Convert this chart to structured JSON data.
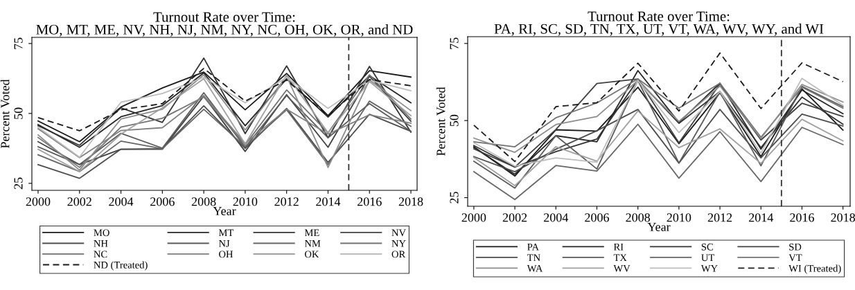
{
  "chart_data": [
    {
      "type": "line",
      "title": "Turnout Rate over Time:\nMO, MT, ME, NV, NH, NJ, NM, NY, NC, OH, OK, OR, and ND",
      "xlabel": "Year",
      "ylabel": "Percent Voted",
      "x": [
        2000,
        2002,
        2004,
        2006,
        2008,
        2010,
        2012,
        2014,
        2016,
        2018
      ],
      "xlim": [
        1999.7,
        2018.3
      ],
      "xticks": [
        2000,
        2002,
        2004,
        2006,
        2008,
        2010,
        2012,
        2014,
        2016,
        2018
      ],
      "ylim": [
        22.5,
        77.2
      ],
      "yticks": [
        25,
        50,
        75
      ],
      "grid": false,
      "legend": "bottom",
      "ref_lines": [
        {
          "axis": "x",
          "value": 2015,
          "color": "#333333",
          "line_style": "dashed"
        }
      ],
      "series": [
        {
          "name": "MO",
          "color": "#1a1a1a",
          "values": [
            47.3,
            39.9,
            52.3,
            59.1,
            64.8,
            51.3,
            64.3,
            49.2,
            65.3,
            63.0
          ]
        },
        {
          "name": "MT",
          "color": "#262626",
          "values": [
            46.0,
            37.9,
            48.8,
            52.8,
            64.5,
            45.6,
            62.4,
            48.7,
            63.5,
            53.8
          ]
        },
        {
          "name": "ME",
          "color": "#333333",
          "values": [
            45.6,
            38.6,
            52.0,
            46.8,
            69.8,
            42.8,
            67.0,
            41.3,
            66.8,
            43.3
          ]
        },
        {
          "name": "NV",
          "color": "#404040",
          "values": [
            39.9,
            31.7,
            37.2,
            37.2,
            56.2,
            36.4,
            56.7,
            37.9,
            63.3,
            47.2
          ]
        },
        {
          "name": "NH",
          "color": "#4d4d4d",
          "values": [
            31.7,
            26.8,
            37.2,
            37.4,
            52.7,
            37.5,
            51.8,
            32.5,
            49.7,
            43.6
          ]
        },
        {
          "name": "NJ",
          "color": "#5a5a5a",
          "values": [
            38.1,
            31.7,
            42.9,
            37.6,
            57.4,
            37.9,
            56.4,
            41.3,
            53.5,
            43.6
          ]
        },
        {
          "name": "NM",
          "color": "#666666",
          "values": [
            35.2,
            29.2,
            40.1,
            37.4,
            51.5,
            38.1,
            51.3,
            31.7,
            54.4,
            45.4
          ]
        },
        {
          "name": "NY",
          "color": "#737373",
          "values": [
            41.4,
            30.7,
            45.1,
            48.3,
            55.9,
            38.8,
            58.4,
            43.1,
            63.8,
            48.0
          ]
        },
        {
          "name": "NC",
          "color": "#808080",
          "values": [
            44.5,
            34.2,
            43.9,
            44.9,
            56.4,
            39.3,
            51.5,
            42.6,
            49.5,
            46.5
          ]
        },
        {
          "name": "OH",
          "color": "#8c8c8c",
          "values": [
            42.3,
            29.7,
            48.0,
            51.5,
            63.8,
            44.1,
            63.3,
            30.7,
            61.9,
            51.0
          ]
        },
        {
          "name": "OK",
          "color": "#a0a0a0",
          "values": [
            37.2,
            29.2,
            42.6,
            52.0,
            62.4,
            39.1,
            63.8,
            43.1,
            61.4,
            49.2
          ]
        },
        {
          "name": "OR",
          "color": "#bdbdbd",
          "values": [
            45.1,
            34.4,
            54.0,
            57.1,
            62.9,
            53.8,
            62.9,
            51.8,
            61.9,
            58.1
          ]
        },
        {
          "name": "ND (Treated)",
          "color": "#1a1a1a",
          "line_style": "dashed",
          "values": [
            48.5,
            43.8,
            51.3,
            53.5,
            66.1,
            54.4,
            61.9,
            49.2,
            62.1,
            59.9
          ]
        }
      ]
    },
    {
      "type": "line",
      "title": "Turnout Rate over Time:\nPA, RI, SC, SD, TN, TX, UT, VT, WA, WV, WY, and WI",
      "xlabel": "Year",
      "ylabel": "Percent Voted",
      "x": [
        2000,
        2002,
        2004,
        2006,
        2008,
        2010,
        2012,
        2014,
        2016,
        2018
      ],
      "xlim": [
        1999.7,
        2018.35
      ],
      "xticks": [
        2000,
        2002,
        2004,
        2006,
        2008,
        2010,
        2012,
        2014,
        2016,
        2018
      ],
      "ylim": [
        22.2,
        77.2
      ],
      "yticks": [
        25,
        50,
        75
      ],
      "grid": false,
      "legend": "bottom",
      "ref_lines": [
        {
          "axis": "x",
          "value": 2015,
          "color": "#333333",
          "line_style": "dashed"
        }
      ],
      "series": [
        {
          "name": "PA",
          "color": "#1a1a1a",
          "values": [
            41.5,
            32.0,
            47.0,
            46.6,
            60.8,
            42.5,
            59.0,
            38.3,
            60.3,
            46.9
          ]
        },
        {
          "name": "RI",
          "color": "#262626",
          "values": [
            41.3,
            32.6,
            45.1,
            43.1,
            66.2,
            49.4,
            62.1,
            40.7,
            59.9,
            52.2
          ]
        },
        {
          "name": "SC",
          "color": "#333333",
          "values": [
            41.9,
            34.9,
            39.9,
            44.0,
            63.2,
            49.1,
            59.4,
            41.2,
            57.6,
            48.8
          ]
        },
        {
          "name": "SD",
          "color": "#404040",
          "values": [
            40.8,
            34.9,
            47.1,
            62.0,
            63.5,
            42.8,
            61.9,
            43.7,
            55.6,
            51.3
          ]
        },
        {
          "name": "TN",
          "color": "#4d4d4d",
          "values": [
            38.3,
            33.4,
            40.7,
            46.7,
            53.6,
            36.2,
            53.6,
            37.9,
            52.1,
            48.2
          ]
        },
        {
          "name": "TX",
          "color": "#5a5a5a",
          "values": [
            36.8,
            28.1,
            45.1,
            34.3,
            63.0,
            36.2,
            59.3,
            35.3,
            61.1,
            54.5
          ]
        },
        {
          "name": "UT",
          "color": "#666666",
          "values": [
            33.4,
            24.4,
            35.4,
            33.6,
            48.8,
            31.3,
            46.4,
            30.2,
            47.8,
            42.2
          ]
        },
        {
          "name": "VT",
          "color": "#737373",
          "values": [
            43.1,
            41.5,
            50.9,
            55.7,
            63.5,
            54.0,
            62.1,
            44.6,
            60.8,
            54.0
          ]
        },
        {
          "name": "WA",
          "color": "#8c8c8c",
          "values": [
            44.3,
            39.7,
            48.7,
            51.3,
            63.0,
            49.7,
            61.2,
            44.2,
            61.7,
            56.0
          ]
        },
        {
          "name": "WV",
          "color": "#a0a0a0",
          "values": [
            38.0,
            28.9,
            41.5,
            36.8,
            53.1,
            41.2,
            47.3,
            36.1,
            50.4,
            43.4
          ]
        },
        {
          "name": "WY",
          "color": "#bdbdbd",
          "values": [
            42.8,
            35.2,
            37.9,
            36.5,
            63.0,
            46.1,
            59.4,
            39.4,
            63.7,
            54.9
          ]
        },
        {
          "name": "WI (Treated)",
          "color": "#1a1a1a",
          "line_style": "dashed",
          "values": [
            48.5,
            36.7,
            54.5,
            55.8,
            68.6,
            53.1,
            71.9,
            53.9,
            68.7,
            62.6
          ]
        }
      ]
    }
  ]
}
